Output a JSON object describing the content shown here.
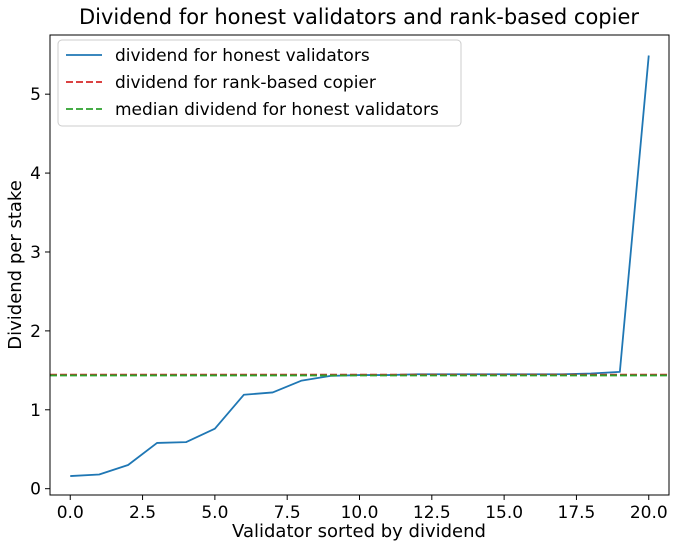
{
  "chart_data": {
    "type": "line",
    "title": "Dividend for honest validators and rank-based copier",
    "xlabel": "Validator sorted by dividend",
    "ylabel": "Dividend per stake",
    "xlim": [
      -0.7,
      20.7
    ],
    "ylim": [
      -0.08,
      5.75
    ],
    "xticks": [
      0.0,
      2.5,
      5.0,
      7.5,
      10.0,
      12.5,
      15.0,
      17.5,
      20.0
    ],
    "xtick_labels": [
      "0.0",
      "2.5",
      "5.0",
      "7.5",
      "10.0",
      "12.5",
      "15.0",
      "17.5",
      "20.0"
    ],
    "yticks": [
      0,
      1,
      2,
      3,
      4,
      5
    ],
    "ytick_labels": [
      "0",
      "1",
      "2",
      "3",
      "4",
      "5"
    ],
    "grid": false,
    "legend_position": "top-left",
    "series": [
      {
        "name": "dividend for honest validators",
        "color": "#1f77b4",
        "style": "solid",
        "x": [
          0,
          1,
          2,
          3,
          4,
          5,
          6,
          7,
          8,
          9,
          10,
          11,
          12,
          13,
          14,
          15,
          16,
          17,
          18,
          19,
          20
        ],
        "y": [
          0.16,
          0.18,
          0.3,
          0.58,
          0.59,
          0.76,
          1.19,
          1.22,
          1.37,
          1.43,
          1.44,
          1.44,
          1.45,
          1.45,
          1.45,
          1.45,
          1.45,
          1.45,
          1.46,
          1.48,
          5.49
        ]
      }
    ],
    "hlines": [
      {
        "name": "dividend for rank-based copier",
        "color": "#d62728",
        "style": "dashed",
        "y": 1.445
      },
      {
        "name": "median dividend for honest validators",
        "color": "#2ca02c",
        "style": "dashed",
        "y": 1.435
      }
    ]
  }
}
